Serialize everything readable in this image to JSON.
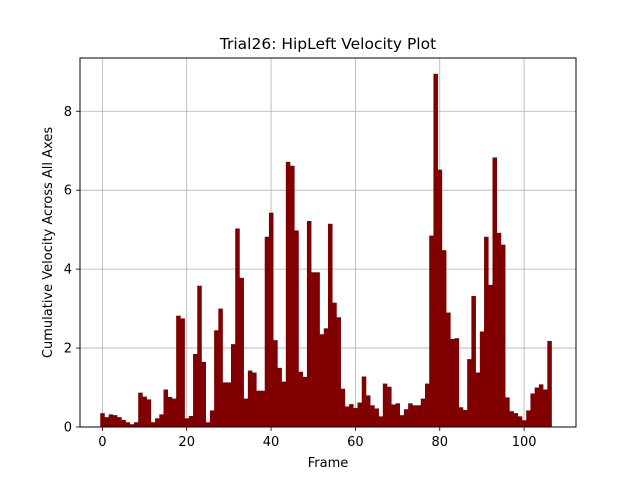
{
  "chart_data": {
    "type": "bar",
    "title": "Trial26: HipLeft Velocity Plot",
    "xlabel": "Frame",
    "ylabel": "Cumulative Velocity Across All Axes",
    "xlim": [
      -5.3,
      112.3
    ],
    "ylim": [
      0,
      9.35
    ],
    "xticks": [
      0,
      20,
      40,
      60,
      80,
      100
    ],
    "yticks": [
      0,
      2,
      4,
      6,
      8
    ],
    "grid": true,
    "bar_color": "#800000",
    "bar_width": 1,
    "x_start": 0,
    "values": [
      0.35,
      0.25,
      0.32,
      0.3,
      0.25,
      0.18,
      0.12,
      0.07,
      0.12,
      0.87,
      0.77,
      0.7,
      0.12,
      0.22,
      0.32,
      0.95,
      0.76,
      0.72,
      2.82,
      2.75,
      0.22,
      0.28,
      1.85,
      3.58,
      1.65,
      0.12,
      0.42,
      2.45,
      3.0,
      1.13,
      1.13,
      2.1,
      5.03,
      3.78,
      0.72,
      1.43,
      1.38,
      0.92,
      0.92,
      4.82,
      5.43,
      2.2,
      1.5,
      1.15,
      6.72,
      6.62,
      4.98,
      1.4,
      1.27,
      5.22,
      3.92,
      3.92,
      2.35,
      2.5,
      5.15,
      3.15,
      2.78,
      0.97,
      0.52,
      0.58,
      0.48,
      0.62,
      1.28,
      0.8,
      0.55,
      0.47,
      0.27,
      1.1,
      1.02,
      0.57,
      0.6,
      0.3,
      0.45,
      0.6,
      0.55,
      0.55,
      0.72,
      1.1,
      4.85,
      8.95,
      6.52,
      4.48,
      2.9,
      2.23,
      2.25,
      0.5,
      0.43,
      1.72,
      3.32,
      1.38,
      2.42,
      4.82,
      3.6,
      6.83,
      4.92,
      4.62,
      0.75,
      0.4,
      0.35,
      0.27,
      0.17,
      0.42,
      0.85,
      1.0,
      1.08,
      0.95,
      2.18
    ]
  }
}
